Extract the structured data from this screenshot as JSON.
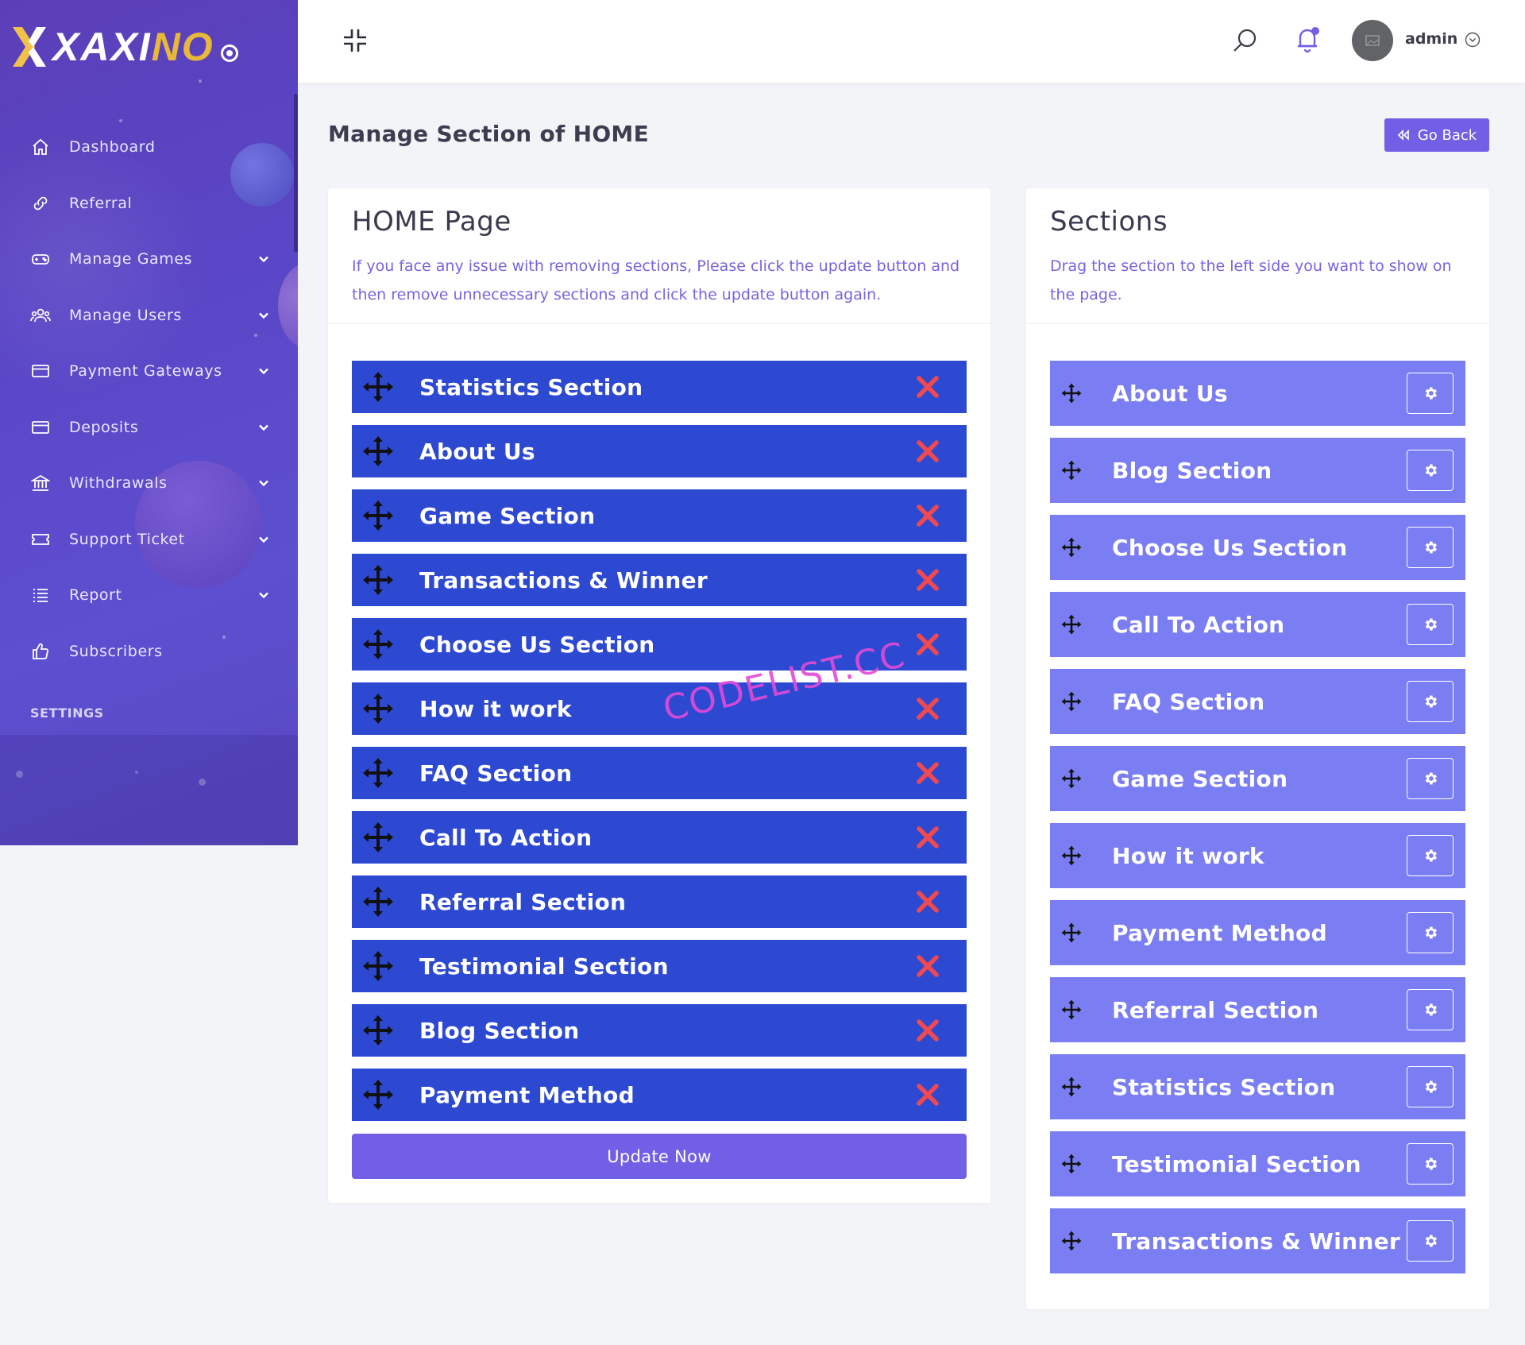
{
  "brand": {
    "name_white": "XAXI",
    "name_gold": "NO"
  },
  "sidebar": {
    "items": [
      {
        "label": "Dashboard",
        "icon": "home-icon",
        "has_submenu": false
      },
      {
        "label": "Referral",
        "icon": "link-icon",
        "has_submenu": false
      },
      {
        "label": "Manage Games",
        "icon": "gamepad-icon",
        "has_submenu": true
      },
      {
        "label": "Manage Users",
        "icon": "users-icon",
        "has_submenu": true
      },
      {
        "label": "Payment Gateways",
        "icon": "credit-card-icon",
        "has_submenu": true
      },
      {
        "label": "Deposits",
        "icon": "credit-card-icon",
        "has_submenu": true
      },
      {
        "label": "Withdrawals",
        "icon": "bank-icon",
        "has_submenu": true
      },
      {
        "label": "Support Ticket",
        "icon": "ticket-icon",
        "has_submenu": true
      },
      {
        "label": "Report",
        "icon": "list-icon",
        "has_submenu": true
      },
      {
        "label": "Subscribers",
        "icon": "thumbs-up-icon",
        "has_submenu": false
      }
    ],
    "section_label": "SETTINGS"
  },
  "topbar": {
    "user_name": "admin",
    "notification_dot_color": "#7160e6"
  },
  "page": {
    "title": "Manage Section of HOME",
    "go_back_label": "Go Back"
  },
  "left_card": {
    "title": "HOME Page",
    "description": "If you face any issue with removing sections, Please click the update button and then remove unnecessary sections and click the update button again.",
    "items": [
      "Statistics Section",
      "About Us",
      "Game Section",
      "Transactions & Winner",
      "Choose Us Section",
      "How it work",
      "FAQ Section",
      "Call To Action",
      "Referral Section",
      "Testimonial Section",
      "Blog Section",
      "Payment Method"
    ],
    "update_label": "Update Now"
  },
  "right_card": {
    "title": "Sections",
    "description": "Drag the section to the left side you want to show on the page.",
    "items": [
      "About Us",
      "Blog Section",
      "Choose Us Section",
      "Call To Action",
      "FAQ Section",
      "Game Section",
      "How it work",
      "Payment Method",
      "Referral Section",
      "Statistics Section",
      "Testimonial Section",
      "Transactions & Winner"
    ]
  },
  "watermark": "CODELIST.CC",
  "colors": {
    "sidebar": "#5a46c6",
    "left_item": "#2e49d1",
    "right_item": "#7b7ef2",
    "accent": "#7160e6",
    "remove": "#f0494f"
  }
}
